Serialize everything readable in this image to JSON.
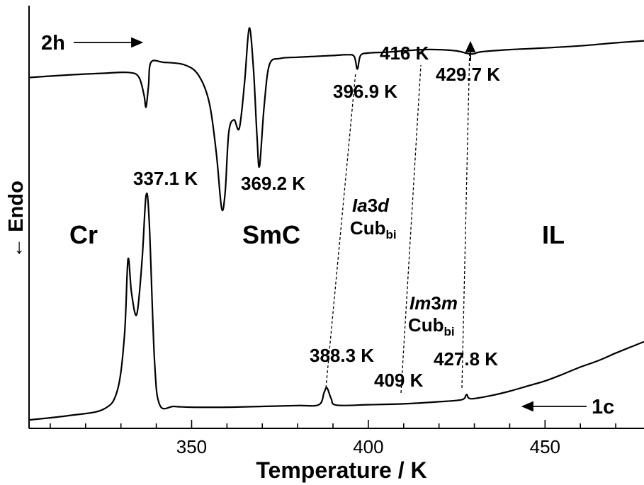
{
  "chart_data": {
    "type": "line",
    "xlabel": "Temperature / K",
    "ylabel": "← Endo",
    "xlim": [
      304,
      478
    ],
    "ylim": [
      0,
      1
    ],
    "x_ticks": [
      350,
      400,
      450
    ],
    "x_tick_labels": [
      "350",
      "400",
      "450"
    ],
    "grid": false,
    "series": [
      {
        "name": "2h",
        "x": [
          304,
          315,
          325,
          332,
          335,
          336.5,
          337.1,
          337.8,
          338.5,
          342,
          348,
          352,
          355,
          357,
          358.5,
          359.5,
          360.5,
          362,
          363.5,
          365,
          366.3,
          367.5,
          368.5,
          369.2,
          370.5,
          372,
          375,
          380,
          385,
          390,
          394,
          396,
          396.9,
          397.8,
          400,
          405,
          410,
          415,
          420,
          425,
          428,
          429.7,
          432,
          440,
          450,
          460,
          470,
          478
        ],
        "y": [
          0.83,
          0.836,
          0.84,
          0.842,
          0.832,
          0.79,
          0.76,
          0.81,
          0.866,
          0.866,
          0.86,
          0.835,
          0.77,
          0.65,
          0.52,
          0.56,
          0.7,
          0.73,
          0.71,
          0.82,
          0.947,
          0.85,
          0.69,
          0.62,
          0.76,
          0.86,
          0.875,
          0.878,
          0.88,
          0.882,
          0.884,
          0.88,
          0.85,
          0.882,
          0.888,
          0.89,
          0.893,
          0.896,
          0.896,
          0.893,
          0.887,
          0.886,
          0.891,
          0.896,
          0.9,
          0.905,
          0.912,
          0.917
        ]
      },
      {
        "name": "1c",
        "x": [
          304,
          315,
          325,
          329,
          331,
          332,
          333,
          334.5,
          336,
          337.1,
          338,
          339.5,
          341,
          345,
          350,
          360,
          370,
          380,
          386,
          387.5,
          388.3,
          389.5,
          391,
          400,
          410,
          420,
          426.5,
          427.8,
          429,
          435,
          440,
          445,
          450,
          455,
          460,
          465,
          470,
          475,
          478
        ],
        "y": [
          0.02,
          0.03,
          0.045,
          0.09,
          0.22,
          0.4,
          0.32,
          0.27,
          0.4,
          0.55,
          0.49,
          0.16,
          0.055,
          0.052,
          0.05,
          0.05,
          0.052,
          0.054,
          0.056,
          0.085,
          0.096,
          0.07,
          0.055,
          0.056,
          0.058,
          0.063,
          0.068,
          0.08,
          0.07,
          0.078,
          0.088,
          0.1,
          0.112,
          0.128,
          0.145,
          0.16,
          0.178,
          0.195,
          0.205
        ]
      }
    ],
    "annotations": {
      "peak_labels": [
        "337.1 K",
        "369.2 K",
        "396.9 K",
        "416 K",
        "429.7 K",
        "388.3 K",
        "409 K",
        "427.8 K"
      ],
      "phase_labels": {
        "cr": "Cr",
        "smc": "SmC",
        "il": "IL",
        "ia3d_italic_1": "Ia",
        "ia3d_normal": "3",
        "ia3d_italic_2": "d",
        "im3m_italic_1": "Im",
        "im3m_normal": "3",
        "im3m_italic_2": "m",
        "cub": "Cub",
        "cub_sub": "bi"
      },
      "heating_label": "2h",
      "cooling_label": "1c"
    }
  }
}
